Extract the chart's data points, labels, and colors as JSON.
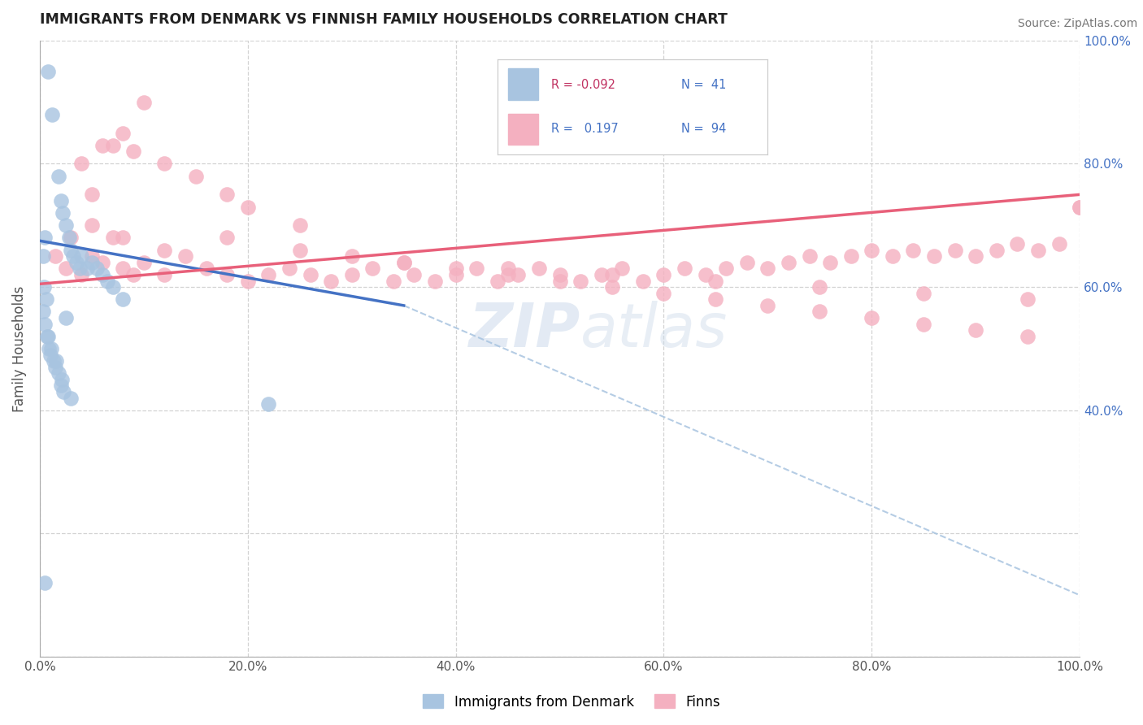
{
  "title": "IMMIGRANTS FROM DENMARK VS FINNISH FAMILY HOUSEHOLDS CORRELATION CHART",
  "source": "Source: ZipAtlas.com",
  "ylabel": "Family Households",
  "legend_label1": "Immigrants from Denmark",
  "legend_label2": "Finns",
  "legend_R1": "R = -0.092",
  "legend_N1": "N =  41",
  "legend_R2": "R =   0.197",
  "legend_N2": "N =  94",
  "blue_color": "#a8c4e0",
  "pink_color": "#f4b0c0",
  "blue_line_color": "#4472c4",
  "pink_line_color": "#e8607a",
  "blue_dashed_color": "#a8c4e0",
  "blue_scatter_x": [
    0.5,
    0.8,
    1.2,
    1.8,
    2.0,
    2.2,
    2.5,
    2.8,
    3.0,
    3.2,
    3.5,
    3.8,
    4.0,
    4.5,
    5.0,
    5.5,
    6.0,
    6.5,
    7.0,
    8.0,
    0.3,
    0.5,
    0.7,
    0.9,
    1.0,
    1.3,
    1.5,
    1.8,
    2.0,
    2.3,
    2.5,
    3.0,
    0.4,
    0.6,
    1.1,
    1.6,
    2.1,
    22.0,
    0.3,
    0.8,
    0.5
  ],
  "blue_scatter_y": [
    68.0,
    95.0,
    88.0,
    78.0,
    74.0,
    72.0,
    70.0,
    68.0,
    66.0,
    65.0,
    64.0,
    63.0,
    65.0,
    63.0,
    64.0,
    63.0,
    62.0,
    61.0,
    60.0,
    58.0,
    56.0,
    54.0,
    52.0,
    50.0,
    49.0,
    48.0,
    47.0,
    46.0,
    44.0,
    43.0,
    55.0,
    42.0,
    60.0,
    58.0,
    50.0,
    48.0,
    45.0,
    41.0,
    65.0,
    52.0,
    12.0
  ],
  "pink_scatter_x": [
    1.5,
    2.5,
    4.0,
    5.0,
    6.0,
    7.0,
    8.0,
    9.0,
    10.0,
    12.0,
    14.0,
    16.0,
    18.0,
    20.0,
    22.0,
    24.0,
    26.0,
    28.0,
    30.0,
    32.0,
    34.0,
    36.0,
    38.0,
    40.0,
    42.0,
    44.0,
    46.0,
    48.0,
    50.0,
    52.0,
    54.0,
    56.0,
    58.0,
    60.0,
    62.0,
    64.0,
    66.0,
    68.0,
    70.0,
    72.0,
    74.0,
    76.0,
    78.0,
    80.0,
    82.0,
    84.0,
    86.0,
    88.0,
    90.0,
    92.0,
    94.0,
    96.0,
    98.0,
    100.0,
    4.0,
    6.0,
    8.0,
    10.0,
    5.0,
    7.0,
    9.0,
    12.0,
    15.0,
    18.0,
    20.0,
    25.0,
    30.0,
    35.0,
    40.0,
    45.0,
    50.0,
    55.0,
    60.0,
    65.0,
    70.0,
    75.0,
    80.0,
    85.0,
    90.0,
    95.0,
    3.0,
    5.0,
    8.0,
    12.0,
    18.0,
    25.0,
    35.0,
    45.0,
    55.0,
    65.0,
    75.0,
    85.0,
    95.0,
    100.0
  ],
  "pink_scatter_y": [
    65.0,
    63.0,
    62.0,
    65.0,
    64.0,
    68.0,
    63.0,
    62.0,
    64.0,
    62.0,
    65.0,
    63.0,
    62.0,
    61.0,
    62.0,
    63.0,
    62.0,
    61.0,
    62.0,
    63.0,
    61.0,
    62.0,
    61.0,
    62.0,
    63.0,
    61.0,
    62.0,
    63.0,
    62.0,
    61.0,
    62.0,
    63.0,
    61.0,
    62.0,
    63.0,
    62.0,
    63.0,
    64.0,
    63.0,
    64.0,
    65.0,
    64.0,
    65.0,
    66.0,
    65.0,
    66.0,
    65.0,
    66.0,
    65.0,
    66.0,
    67.0,
    66.0,
    67.0,
    73.0,
    80.0,
    83.0,
    85.0,
    90.0,
    75.0,
    83.0,
    82.0,
    80.0,
    78.0,
    75.0,
    73.0,
    70.0,
    65.0,
    64.0,
    63.0,
    62.0,
    61.0,
    60.0,
    59.0,
    58.0,
    57.0,
    56.0,
    55.0,
    54.0,
    53.0,
    52.0,
    68.0,
    70.0,
    68.0,
    66.0,
    68.0,
    66.0,
    64.0,
    63.0,
    62.0,
    61.0,
    60.0,
    59.0,
    58.0,
    73.0
  ],
  "xlim": [
    0,
    100
  ],
  "ylim": [
    0,
    100
  ],
  "figsize": [
    14.06,
    8.92
  ],
  "dpi": 100,
  "blue_line_x0": 0,
  "blue_line_y0": 67.5,
  "blue_line_x1": 35,
  "blue_line_y1": 57.0,
  "dashed_line_x0": 35,
  "dashed_line_y0": 57.0,
  "dashed_line_x1": 100,
  "dashed_line_y1": 10.0,
  "pink_line_x0": 0,
  "pink_line_y0": 60.5,
  "pink_line_x1": 100,
  "pink_line_y1": 75.0
}
